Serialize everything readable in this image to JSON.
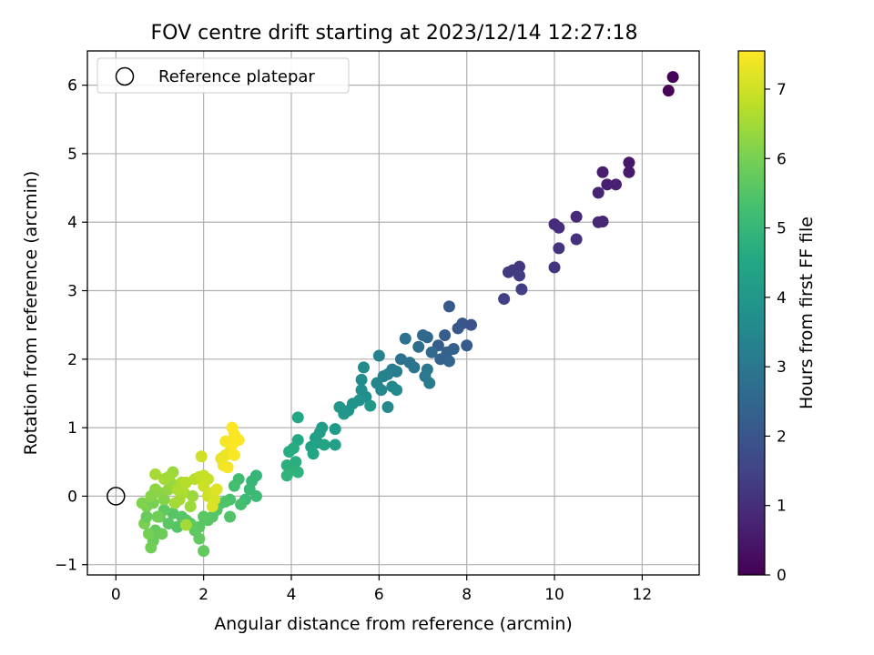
{
  "chart_data": {
    "type": "scatter",
    "title": "FOV centre drift starting at 2023/12/14 12:27:18",
    "xlabel": "Angular distance from reference (arcmin)",
    "ylabel": "Rotation from reference (arcmin)",
    "xlim": [
      -0.65,
      13.3
    ],
    "ylim": [
      -1.15,
      6.5
    ],
    "xticks": [
      0,
      2,
      4,
      6,
      8,
      10,
      12
    ],
    "yticks": [
      -1,
      0,
      1,
      2,
      3,
      4,
      5,
      6
    ],
    "grid": true,
    "legend": {
      "position": "top-left",
      "entries": [
        "Reference platepar"
      ]
    },
    "reference_point": {
      "x": 0,
      "y": 0
    },
    "colorbar": {
      "label": "Hours from first FF file",
      "range": [
        0,
        7.55
      ],
      "ticks": [
        0,
        1,
        2,
        3,
        4,
        5,
        6,
        7
      ],
      "colormap": "viridis"
    },
    "points": [
      [
        12.7,
        6.12,
        0.05
      ],
      [
        12.6,
        5.92,
        0.1
      ],
      [
        11.7,
        4.87,
        0.5
      ],
      [
        11.7,
        4.73,
        0.55
      ],
      [
        11.1,
        4.73,
        0.6
      ],
      [
        11.2,
        4.55,
        0.65
      ],
      [
        11.4,
        4.55,
        0.7
      ],
      [
        11.0,
        4.43,
        0.75
      ],
      [
        11.1,
        4.01,
        0.8
      ],
      [
        11.0,
        4.0,
        0.85
      ],
      [
        10.5,
        4.08,
        0.9
      ],
      [
        10.0,
        3.97,
        0.95
      ],
      [
        10.1,
        3.92,
        1.0
      ],
      [
        10.5,
        3.75,
        1.05
      ],
      [
        10.1,
        3.62,
        1.1
      ],
      [
        10.0,
        3.34,
        1.15
      ],
      [
        9.2,
        3.35,
        1.2
      ],
      [
        9.05,
        3.3,
        1.25
      ],
      [
        8.95,
        3.27,
        1.3
      ],
      [
        9.2,
        3.22,
        1.35
      ],
      [
        9.25,
        3.02,
        1.4
      ],
      [
        8.85,
        2.88,
        1.45
      ],
      [
        8.1,
        2.5,
        1.9
      ],
      [
        7.9,
        2.52,
        2.0
      ],
      [
        7.8,
        2.45,
        2.05
      ],
      [
        7.6,
        2.77,
        2.1
      ],
      [
        8.0,
        2.2,
        2.15
      ],
      [
        7.5,
        2.35,
        2.2
      ],
      [
        7.35,
        2.2,
        2.25
      ],
      [
        7.7,
        2.15,
        2.3
      ],
      [
        7.55,
        2.1,
        2.35
      ],
      [
        7.4,
        2.0,
        2.4
      ],
      [
        7.6,
        1.97,
        2.45
      ],
      [
        7.1,
        2.32,
        2.5
      ],
      [
        7.0,
        2.35,
        2.55
      ],
      [
        7.2,
        2.1,
        2.6
      ],
      [
        6.9,
        2.18,
        2.7
      ],
      [
        6.6,
        2.3,
        2.8
      ],
      [
        6.5,
        2.0,
        2.85
      ],
      [
        6.7,
        1.95,
        2.9
      ],
      [
        6.8,
        1.88,
        2.95
      ],
      [
        7.1,
        1.85,
        3.0
      ],
      [
        7.05,
        1.75,
        3.05
      ],
      [
        7.15,
        1.65,
        3.1
      ],
      [
        6.3,
        1.85,
        3.15
      ],
      [
        6.4,
        1.82,
        3.2
      ],
      [
        6.2,
        1.78,
        3.25
      ],
      [
        6.0,
        2.05,
        3.3
      ],
      [
        6.1,
        1.75,
        3.35
      ],
      [
        5.95,
        1.65,
        3.4
      ],
      [
        6.05,
        1.55,
        3.45
      ],
      [
        6.3,
        1.6,
        3.5
      ],
      [
        6.4,
        1.55,
        3.55
      ],
      [
        5.65,
        1.88,
        3.6
      ],
      [
        5.6,
        1.7,
        3.65
      ],
      [
        5.6,
        1.55,
        3.7
      ],
      [
        5.7,
        1.45,
        3.75
      ],
      [
        5.55,
        1.4,
        3.8
      ],
      [
        5.4,
        1.35,
        3.85
      ],
      [
        5.3,
        1.25,
        3.9
      ],
      [
        5.2,
        1.2,
        3.95
      ],
      [
        5.1,
        1.3,
        4.0
      ],
      [
        5.8,
        1.32,
        4.05
      ],
      [
        6.2,
        1.3,
        3.5
      ],
      [
        5.0,
        0.98,
        4.1
      ],
      [
        4.7,
        1.0,
        4.15
      ],
      [
        4.65,
        0.93,
        4.2
      ],
      [
        4.55,
        0.85,
        4.25
      ],
      [
        4.6,
        0.78,
        4.3
      ],
      [
        4.45,
        0.72,
        4.35
      ],
      [
        4.75,
        0.75,
        4.4
      ],
      [
        4.5,
        0.62,
        4.45
      ],
      [
        4.15,
        1.15,
        4.5
      ],
      [
        4.15,
        0.82,
        4.55
      ],
      [
        4.05,
        0.7,
        4.6
      ],
      [
        3.95,
        0.65,
        4.65
      ],
      [
        4.1,
        0.5,
        4.7
      ],
      [
        3.9,
        0.45,
        4.75
      ],
      [
        4.0,
        0.38,
        4.8
      ],
      [
        4.15,
        0.35,
        4.85
      ],
      [
        3.9,
        0.3,
        4.9
      ],
      [
        5.0,
        0.75,
        4.25
      ],
      [
        3.2,
        0.3,
        4.95
      ],
      [
        3.1,
        0.22,
        5.0
      ],
      [
        3.05,
        0.1,
        5.05
      ],
      [
        3.2,
        0.0,
        5.1
      ],
      [
        2.95,
        -0.05,
        5.15
      ],
      [
        2.8,
        0.25,
        5.2
      ],
      [
        2.7,
        0.15,
        5.25
      ],
      [
        2.85,
        -0.12,
        5.3
      ],
      [
        2.6,
        -0.05,
        5.35
      ],
      [
        2.5,
        -0.08,
        5.4
      ],
      [
        2.4,
        -0.1,
        5.45
      ],
      [
        2.3,
        -0.2,
        5.5
      ],
      [
        2.2,
        -0.3,
        5.5
      ],
      [
        2.6,
        -0.3,
        5.45
      ],
      [
        2.1,
        -0.35,
        5.55
      ],
      [
        2.0,
        -0.3,
        5.6
      ],
      [
        1.9,
        -0.45,
        5.6
      ],
      [
        1.8,
        -0.5,
        5.65
      ],
      [
        1.9,
        -0.62,
        5.7
      ],
      [
        2.0,
        -0.8,
        5.7
      ],
      [
        1.7,
        -0.4,
        5.65
      ],
      [
        1.6,
        -0.35,
        5.6
      ],
      [
        1.5,
        -0.3,
        5.55
      ],
      [
        1.4,
        -0.45,
        5.5
      ],
      [
        1.3,
        -0.25,
        5.55
      ],
      [
        1.2,
        -0.4,
        5.6
      ],
      [
        1.1,
        -0.2,
        5.65
      ],
      [
        1.0,
        -0.3,
        5.7
      ],
      [
        0.9,
        -0.5,
        5.75
      ],
      [
        0.85,
        -0.65,
        5.8
      ],
      [
        0.8,
        -0.75,
        5.9
      ],
      [
        0.75,
        -0.55,
        5.95
      ],
      [
        0.65,
        -0.4,
        6.0
      ],
      [
        0.7,
        -0.15,
        6.05
      ],
      [
        0.6,
        -0.1,
        6.1
      ],
      [
        0.85,
        -0.1,
        6.0
      ],
      [
        0.95,
        -0.3,
        5.9
      ],
      [
        1.05,
        -0.55,
        5.85
      ],
      [
        0.7,
        -0.3,
        5.8
      ],
      [
        1.1,
        -0.05,
        6.15
      ],
      [
        1.0,
        0.05,
        6.2
      ],
      [
        0.9,
        0.1,
        6.25
      ],
      [
        0.8,
        0.0,
        6.2
      ],
      [
        1.2,
        0.1,
        6.3
      ],
      [
        1.25,
        0.2,
        6.35
      ],
      [
        1.3,
        0.35,
        6.4
      ],
      [
        1.2,
        0.28,
        6.45
      ],
      [
        1.1,
        0.25,
        6.5
      ],
      [
        0.9,
        0.32,
        6.55
      ],
      [
        1.4,
        0.1,
        6.6
      ],
      [
        1.5,
        0.2,
        6.6
      ],
      [
        1.6,
        0.2,
        6.7
      ],
      [
        1.55,
        0.05,
        6.65
      ],
      [
        1.45,
        -0.05,
        6.55
      ],
      [
        1.35,
        -0.1,
        6.5
      ],
      [
        1.7,
        -0.15,
        6.45
      ],
      [
        1.6,
        -0.42,
        6.5
      ],
      [
        1.8,
        0.25,
        6.75
      ],
      [
        1.9,
        0.28,
        6.8
      ],
      [
        2.0,
        0.3,
        6.85
      ],
      [
        2.1,
        0.25,
        6.9
      ],
      [
        2.0,
        0.15,
        6.95
      ],
      [
        2.1,
        0.0,
        7.0
      ],
      [
        2.2,
        0.05,
        7.05
      ],
      [
        2.25,
        -0.05,
        7.1
      ],
      [
        2.2,
        -0.15,
        7.15
      ],
      [
        2.3,
        0.1,
        7.2
      ],
      [
        1.95,
        0.58,
        7.0
      ],
      [
        2.4,
        0.55,
        7.3
      ],
      [
        2.5,
        0.6,
        7.35
      ],
      [
        2.6,
        0.65,
        7.4
      ],
      [
        2.5,
        0.8,
        7.45
      ],
      [
        2.45,
        0.45,
        7.4
      ],
      [
        2.55,
        0.42,
        7.45
      ],
      [
        2.7,
        0.6,
        7.5
      ],
      [
        2.65,
        0.75,
        7.5
      ],
      [
        2.8,
        0.82,
        7.55
      ],
      [
        2.65,
        1.0,
        7.55
      ],
      [
        2.7,
        0.9,
        7.5
      ],
      [
        1.75,
        0.0,
        6.4
      ]
    ]
  }
}
